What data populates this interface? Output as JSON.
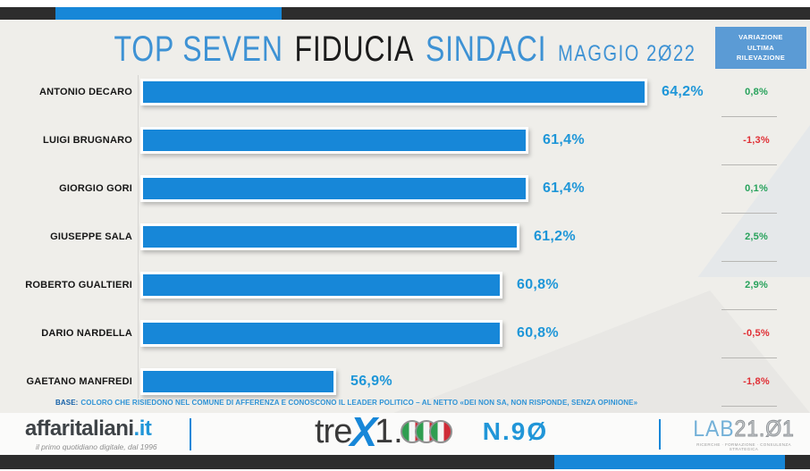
{
  "title": {
    "top": "TOP SEVEN",
    "middle": "FIDUCIA",
    "right": "SINDACI",
    "date": "MAGGIO 2Ø22"
  },
  "variation_header": "VARIAZIONE\nULTIMA\nRILEVAZIONE",
  "chart_data": {
    "type": "bar",
    "orientation": "horizontal",
    "title": "TOP SEVEN FIDUCIA SINDACI MAGGIO 2022",
    "categories": [
      "ANTONIO DECARO",
      "LUIGI BRUGNARO",
      "GIORGIO GORI",
      "GIUSEPPE SALA",
      "ROBERTO GUALTIERI",
      "DARIO NARDELLA",
      "GAETANO MANFREDI"
    ],
    "values": [
      64.2,
      61.4,
      61.4,
      61.2,
      60.8,
      60.8,
      56.9
    ],
    "value_labels": [
      "64,2%",
      "61,4%",
      "61,4%",
      "61,2%",
      "60,8%",
      "60,8%",
      "56,9%"
    ],
    "variations": [
      "0,8%",
      "-1,3%",
      "0,1%",
      "2,5%",
      "2,9%",
      "-0,5%",
      "-1,8%"
    ],
    "variation_column_title": "VARIAZIONE ULTIMA RILEVAZIONE",
    "axis_min": 52.3,
    "axis_max": 66.0,
    "grid": false,
    "legend": false,
    "bar_color": "#1787d8",
    "value_color": "#1e96d8",
    "positive_color": "#27a25b",
    "negative_color": "#e02f35"
  },
  "footnote": {
    "prefix": "BASE:",
    "text": "COLORO CHE RISIEDONO NEL COMUNE DI AFFERENZA E CONOSCONO IL LEADER POLITICO – AL NETTO «DEI NON SA, NON RISPONDE, SENZA OPINIONE»"
  },
  "footer": {
    "affaritaliani": {
      "name": "affaritaliani",
      "tld": ".it",
      "tagline": "il primo quotidiano digitale, dal 1996"
    },
    "trex": {
      "part1": "tre",
      "x": "X",
      "part2": "1.",
      "issue": "N.9Ø"
    },
    "lab": {
      "prefix": "LAB",
      "suffix": "21.Ø1",
      "tagline": "RICERCHE · FORMAZIONE · CONSULENZA STRATEGICA"
    }
  },
  "colors": {
    "accent_blue": "#1787d8",
    "header_box_blue": "#5b9bd5",
    "dark_bar": "#2d2d2d",
    "background": "#efeeea"
  }
}
